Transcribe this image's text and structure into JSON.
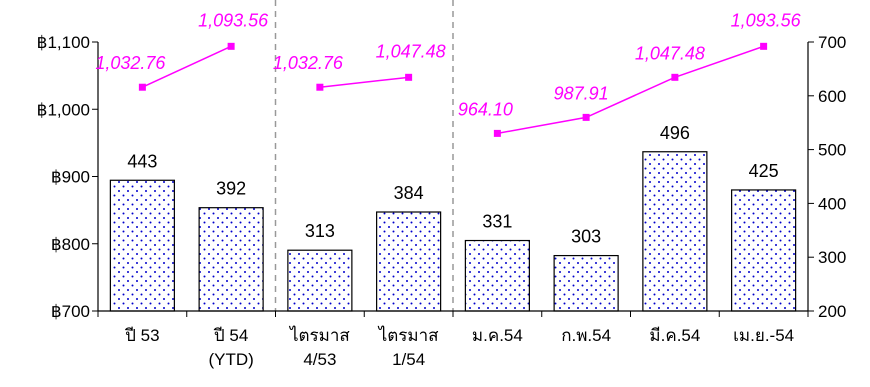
{
  "chart_data": {
    "type": "bar",
    "categories": [
      [
        "ปี 53"
      ],
      [
        "ปี 54",
        "(YTD)"
      ],
      [
        "ไตรมาส",
        "4/53"
      ],
      [
        "ไตรมาส",
        "1/54"
      ],
      [
        "ม.ค.54"
      ],
      [
        "ก.พ.54"
      ],
      [
        "มี.ค.54"
      ],
      [
        "เม.ย.-54"
      ]
    ],
    "series": [
      {
        "type": "bar",
        "axis": "right",
        "values": [
          443,
          392,
          313,
          384,
          331,
          303,
          496,
          425
        ],
        "labels": [
          "443",
          "392",
          "313",
          "384",
          "331",
          "303",
          "496",
          "425"
        ],
        "color": "#0000cc"
      },
      {
        "type": "line",
        "axis": "left",
        "segments": [
          [
            0,
            1
          ],
          [
            2,
            3
          ],
          [
            4,
            5,
            6,
            7
          ]
        ],
        "values": [
          1032.76,
          1093.56,
          1032.76,
          1047.48,
          964.1,
          987.91,
          1047.48,
          1093.56
        ],
        "labels": [
          "1,032.76",
          "1,093.56",
          "1,032.76",
          "1,047.48",
          "964.10",
          "987.91",
          "1,047.48",
          "1,093.56"
        ],
        "color": "#ff00ff"
      }
    ],
    "left_axis": {
      "ylim": [
        700,
        1100
      ],
      "ticks": [
        1100,
        1000,
        900,
        800,
        700
      ],
      "tick_labels": [
        "฿1,100",
        "฿1,000",
        "฿900",
        "฿800",
        "฿700"
      ]
    },
    "right_axis": {
      "ylim": [
        200,
        700
      ],
      "ticks": [
        700,
        600,
        500,
        400,
        300,
        200
      ],
      "tick_labels": [
        "700",
        "600",
        "500",
        "400",
        "300",
        "200"
      ]
    },
    "group_dividers_after": [
      1,
      3
    ],
    "grid": false,
    "legend": "none",
    "title": "",
    "xlabel": "",
    "ylabel": ""
  }
}
